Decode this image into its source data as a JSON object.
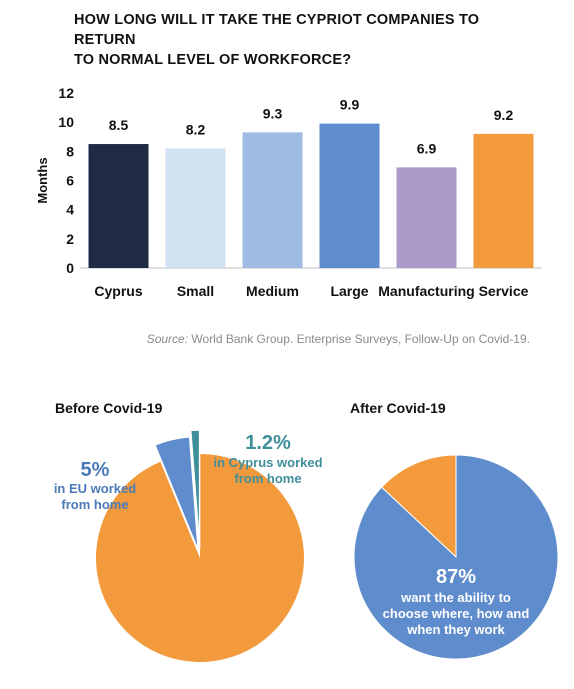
{
  "header": {
    "title_line1": "HOW LONG WILL IT TAKE THE CYPRIOT COMPANIES TO RETURN",
    "title_line2": "TO NORMAL LEVEL OF WORKFORCE?"
  },
  "source": {
    "label": "Source:",
    "text": "World Bank Group. Enterprise Surveys, Follow-Up on Covid-19."
  },
  "colors": {
    "cyprus": "#1f2a44",
    "small": "#d3e2f3",
    "medium": "#9fbbe4",
    "large": "#5f8ccc",
    "manufacturing": "#ab9ac9",
    "service": "#f39a3d",
    "pie_blue": "#5f8ccc",
    "pie_orange": "#f39a3d",
    "label_blue": "#4a7bb7",
    "label_teal": "#3f8f9b"
  },
  "chart_data": [
    {
      "type": "bar",
      "title": "HOW LONG WILL IT TAKE THE CYPRIOT COMPANIES TO RETURN TO NORMAL LEVEL OF WORKFORCE?",
      "ylabel": "Months",
      "xlabel": "",
      "ylim": [
        0,
        12
      ],
      "yticks": [
        0,
        2,
        4,
        6,
        8,
        10,
        12
      ],
      "grid": false,
      "categories": [
        "Cyprus",
        "Small",
        "Medium",
        "Large",
        "Manufacturing",
        "Service"
      ],
      "values": [
        8.5,
        8.2,
        9.3,
        9.9,
        6.9,
        9.2
      ],
      "value_labels": [
        "8.5",
        "8.2",
        "9.3",
        "9.9",
        "6.9",
        "9.2"
      ]
    },
    {
      "type": "pie",
      "title": "Before Covid-19",
      "slices": [
        {
          "value": 93.8,
          "label": ""
        },
        {
          "value": 5,
          "label_pct": "5%",
          "label_lines": [
            "in EU worked",
            "from home"
          ]
        },
        {
          "value": 1.2,
          "label_pct": "1.2%",
          "label_lines": [
            "in Cyprus worked",
            "from home"
          ]
        }
      ]
    },
    {
      "type": "pie",
      "title": "After Covid-19",
      "slices": [
        {
          "value": 87,
          "label_pct": "87%",
          "label_lines": [
            "want the ability to",
            "choose where, how and",
            "when they work"
          ]
        },
        {
          "value": 13,
          "label": ""
        }
      ]
    }
  ]
}
